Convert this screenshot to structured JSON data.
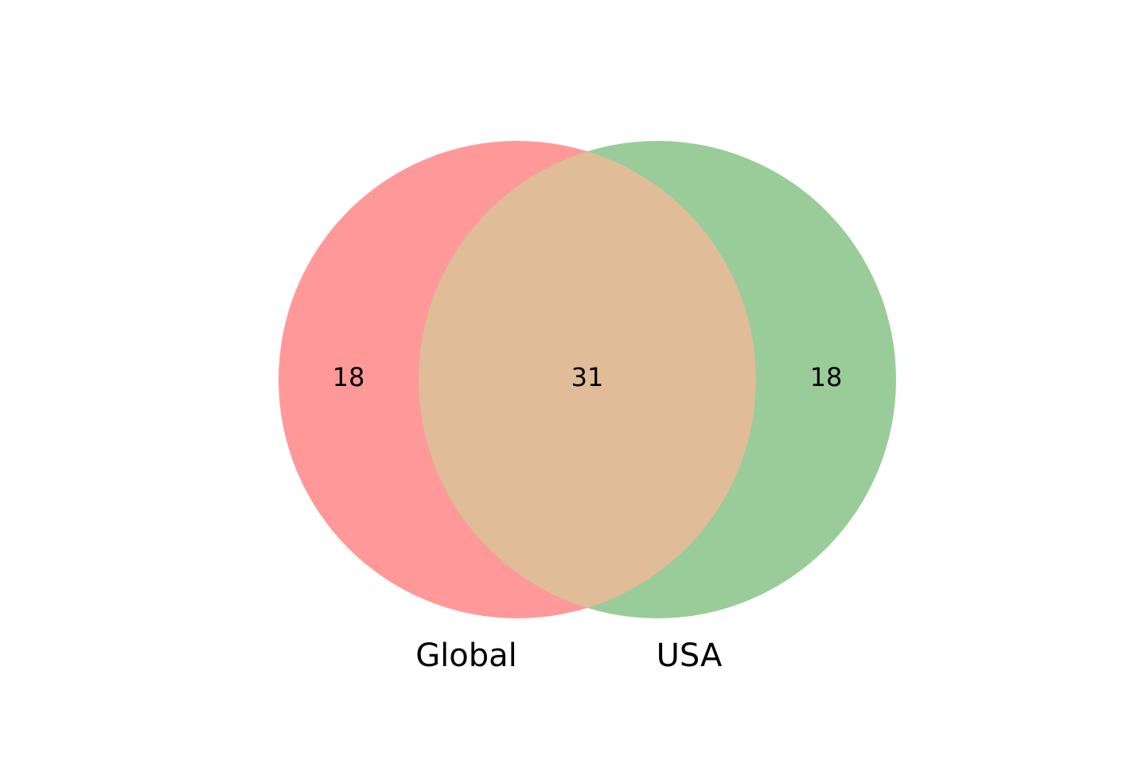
{
  "chart_data": {
    "type": "venn",
    "sets": [
      {
        "name": "Global",
        "color": "#ff9999"
      },
      {
        "name": "USA",
        "color": "#99cc99"
      }
    ],
    "regions": {
      "global_only": 18,
      "intersection": 31,
      "usa_only": 18
    },
    "intersection_color": "#e0bc99"
  }
}
